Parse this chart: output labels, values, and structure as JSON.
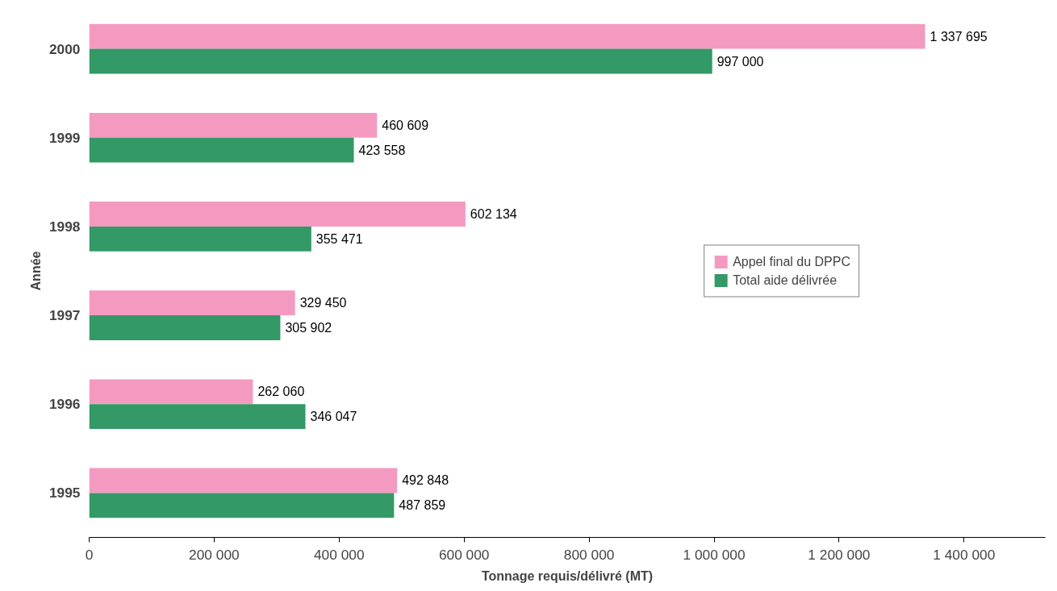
{
  "chart_data": {
    "type": "bar",
    "orientation": "horizontal",
    "xlabel": "Tonnage requis/délivré (MT)",
    "ylabel": "Année",
    "categories": [
      "2000",
      "1999",
      "1998",
      "1997",
      "1996",
      "1995"
    ],
    "series": [
      {
        "name": "Appel final du DPPC",
        "color": "#f49ac1",
        "values": [
          1337695,
          460609,
          602134,
          329450,
          262060,
          492848
        ],
        "value_labels": [
          "1 337 695",
          "460 609",
          "602 134",
          "329 450",
          "262 060",
          "492 848"
        ]
      },
      {
        "name": "Total aide délivrée",
        "color": "#339966",
        "values": [
          997000,
          423558,
          355471,
          305902,
          346047,
          487859
        ],
        "value_labels": [
          "997 000",
          "423 558",
          "355 471",
          "305 902",
          "346 047",
          "487 859"
        ]
      }
    ],
    "xlim": [
      0,
      1530000
    ],
    "xticks": [
      0,
      {
        "value": 200000,
        "label": "200 000"
      },
      {
        "value": 400000,
        "label": "400 000"
      },
      {
        "value": 600000,
        "label": "600 000"
      },
      {
        "value": 800000,
        "label": "800 000"
      },
      {
        "value": 1000000,
        "label": "1 000 000"
      },
      {
        "value": 1200000,
        "label": "1 200 000"
      },
      {
        "value": 1400000,
        "label": "1 400 000"
      }
    ],
    "legend": "right",
    "grid": false
  }
}
